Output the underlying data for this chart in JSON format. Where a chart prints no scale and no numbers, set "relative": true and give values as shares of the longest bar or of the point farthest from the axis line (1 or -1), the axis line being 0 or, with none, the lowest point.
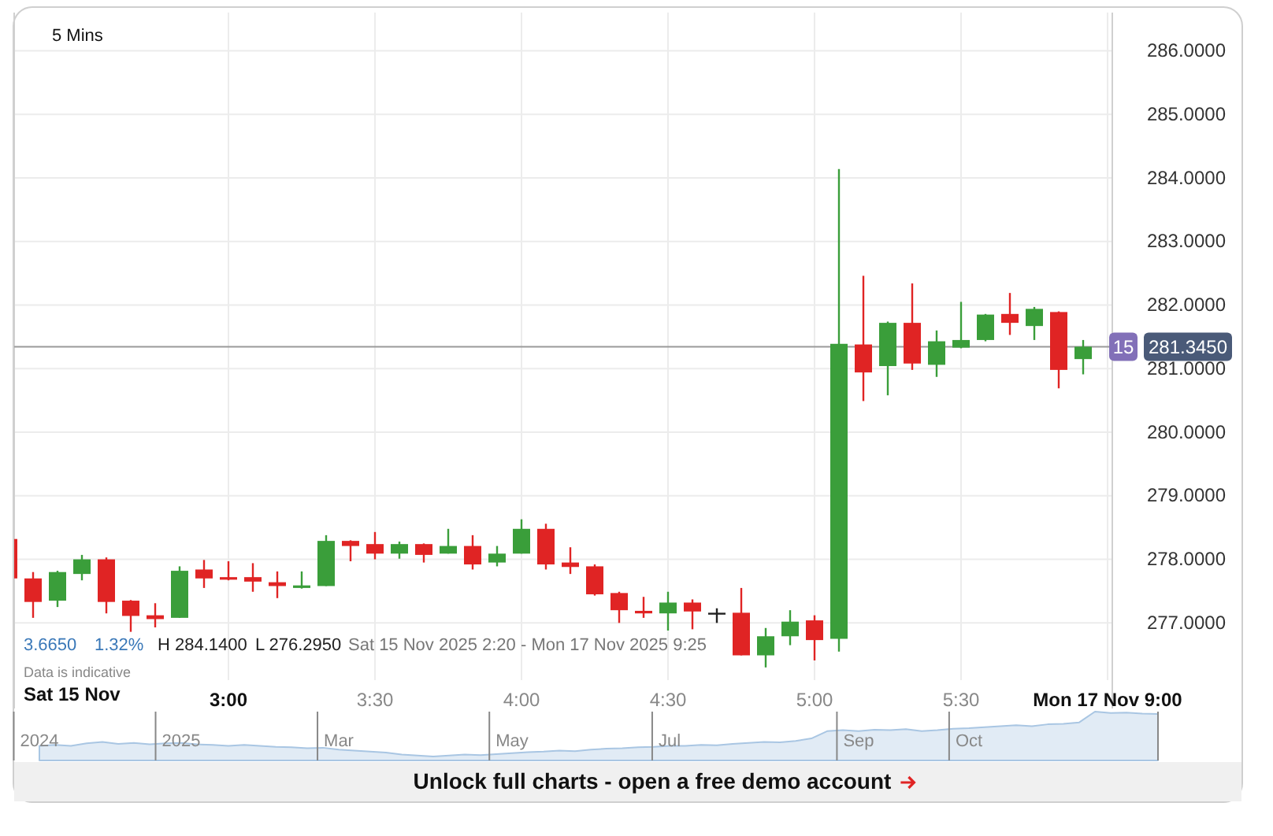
{
  "chart_data": [
    {
      "type": "candlestick",
      "categories": [
        null,
        null,
        null,
        null,
        null,
        null,
        null,
        null,
        null,
        "3:00",
        null,
        null,
        null,
        null,
        null,
        "3:30",
        null,
        null,
        null,
        null,
        null,
        "4:00",
        null,
        null,
        null,
        null,
        null,
        "4:30",
        null,
        null,
        null,
        null,
        null,
        "5:00",
        null,
        null,
        null,
        null,
        null,
        "5:30",
        null,
        null,
        null,
        null,
        null,
        "Mon 17 Nov 9:00"
      ],
      "ohlc": [
        [
          278.32,
          278.35,
          277.7,
          277.7
        ],
        [
          277.7,
          277.8,
          277.08,
          277.33
        ],
        [
          277.35,
          277.82,
          277.25,
          277.8
        ],
        [
          277.77,
          278.07,
          277.67,
          278.0
        ],
        [
          278.0,
          278.03,
          277.15,
          277.33
        ],
        [
          277.35,
          277.36,
          276.86,
          277.11
        ],
        [
          277.12,
          277.31,
          276.93,
          277.06
        ],
        [
          277.08,
          277.89,
          277.08,
          277.82
        ],
        [
          277.84,
          277.99,
          277.55,
          277.7
        ],
        [
          277.72,
          277.97,
          277.67,
          277.68
        ],
        [
          277.72,
          277.94,
          277.49,
          277.65
        ],
        [
          277.64,
          277.81,
          277.39,
          277.58
        ],
        [
          277.55,
          277.81,
          277.54,
          277.59
        ],
        [
          277.58,
          278.38,
          277.58,
          278.29
        ],
        [
          278.29,
          278.3,
          277.97,
          278.21
        ],
        [
          278.24,
          278.43,
          278.0,
          278.09
        ],
        [
          278.09,
          278.28,
          278.01,
          278.24
        ],
        [
          278.24,
          278.25,
          277.95,
          278.07
        ],
        [
          278.09,
          278.48,
          278.09,
          278.21
        ],
        [
          278.21,
          278.38,
          277.84,
          277.92
        ],
        [
          277.95,
          278.21,
          277.89,
          278.09
        ],
        [
          278.09,
          278.63,
          278.09,
          278.48
        ],
        [
          278.48,
          278.56,
          277.84,
          277.92
        ],
        [
          277.95,
          278.19,
          277.77,
          277.88
        ],
        [
          277.89,
          277.92,
          277.43,
          277.45
        ],
        [
          277.47,
          277.49,
          277.0,
          277.2
        ],
        [
          277.19,
          277.41,
          277.08,
          277.15
        ],
        [
          277.15,
          277.49,
          276.88,
          277.32
        ],
        [
          277.32,
          277.37,
          276.9,
          277.18
        ],
        [
          277.16,
          277.23,
          277.0,
          277.16
        ],
        [
          277.16,
          277.55,
          276.49,
          276.49
        ],
        [
          276.49,
          276.92,
          276.3,
          276.79
        ],
        [
          276.79,
          277.2,
          276.65,
          277.02
        ],
        [
          277.04,
          277.12,
          276.41,
          276.73
        ],
        [
          276.75,
          284.14,
          276.55,
          281.39
        ],
        [
          281.38,
          282.46,
          280.49,
          280.94
        ],
        [
          281.04,
          281.74,
          280.58,
          281.72
        ],
        [
          281.72,
          282.34,
          280.98,
          281.08
        ],
        [
          281.06,
          281.6,
          280.87,
          281.43
        ],
        [
          281.33,
          282.05,
          281.32,
          281.45
        ],
        [
          281.45,
          281.86,
          281.43,
          281.85
        ],
        [
          281.86,
          282.19,
          281.53,
          281.72
        ],
        [
          281.67,
          281.97,
          281.45,
          281.94
        ],
        [
          281.89,
          281.9,
          280.69,
          280.98
        ],
        [
          281.15,
          281.45,
          280.91,
          281.345
        ],
        null
      ],
      "colors": [
        "#e02424",
        "#e02424",
        "#3a9e3a",
        "#3a9e3a",
        "#e02424",
        "#e02424",
        "#e02424",
        "#3a9e3a",
        "#e02424",
        "#e02424",
        "#e02424",
        "#e02424",
        "#3a9e3a",
        "#3a9e3a",
        "#e02424",
        "#e02424",
        "#3a9e3a",
        "#e02424",
        "#3a9e3a",
        "#e02424",
        "#3a9e3a",
        "#3a9e3a",
        "#e02424",
        "#e02424",
        "#e02424",
        "#e02424",
        "#e02424",
        "#3a9e3a",
        "#e02424",
        "#222222",
        "#e02424",
        "#3a9e3a",
        "#3a9e3a",
        "#e02424",
        "#3a9e3a",
        "#e02424",
        "#3a9e3a",
        "#e02424",
        "#3a9e3a",
        "#3a9e3a",
        "#3a9e3a",
        "#e02424",
        "#3a9e3a",
        "#e02424",
        "#3a9e3a",
        null
      ],
      "ylim": [
        276.1,
        286.6
      ],
      "yticks": [
        {
          "value": 277,
          "label": "277.0000"
        },
        {
          "value": 278,
          "label": "278.0000"
        },
        {
          "value": 279,
          "label": "279.0000"
        },
        {
          "value": 280,
          "label": "280.0000"
        },
        {
          "value": 281,
          "label": "281.0000"
        },
        {
          "value": 282,
          "label": "282.0000"
        },
        {
          "value": 283,
          "label": "283.0000"
        },
        {
          "value": 284,
          "label": "284.0000"
        },
        {
          "value": 285,
          "label": "285.0000"
        },
        {
          "value": 286,
          "label": "286.0000"
        }
      ],
      "grid": true,
      "ref_lines": [
        {
          "axis": "y",
          "value": 281.345,
          "label": "281.3450",
          "color": "#9a9a9a"
        }
      ],
      "annotations": [
        "Sat 15 Nov",
        "5 Mins",
        "3.6650",
        "1.32%",
        "H 284.1400",
        "L 276.2950",
        "Sat 15 Nov 2025 2:20 - Mon 17 Nov 2025 9:25",
        "Data is indicative",
        {
          "text": "15",
          "y": 281.345
        },
        "Unlock full charts - open a free demo account"
      ]
    },
    {
      "type": "area",
      "relative": true,
      "color": "#a9c6e3",
      "categories": [
        "2024",
        null,
        null,
        null,
        null,
        null,
        null,
        null,
        null,
        "2025",
        null,
        null,
        null,
        null,
        null,
        null,
        null,
        null,
        null,
        "Mar",
        null,
        null,
        null,
        null,
        null,
        null,
        null,
        null,
        null,
        null,
        "May",
        null,
        null,
        null,
        null,
        null,
        null,
        null,
        null,
        null,
        "Jul",
        null,
        null,
        null,
        null,
        null,
        null,
        null,
        null,
        null,
        null,
        null,
        "Sep",
        null,
        null,
        null,
        null,
        null,
        null,
        "Oct",
        null,
        null,
        null,
        null,
        null,
        null,
        null,
        null,
        null,
        null,
        null,
        null
      ],
      "values": [
        0.3,
        0.32,
        0.3,
        0.35,
        0.38,
        0.34,
        0.36,
        0.33,
        0.35,
        0.36,
        0.33,
        0.32,
        0.3,
        0.32,
        0.3,
        0.28,
        0.27,
        0.25,
        0.26,
        0.22,
        0.2,
        0.18,
        0.16,
        0.12,
        0.1,
        0.08,
        0.1,
        0.12,
        0.11,
        0.13,
        0.15,
        0.17,
        0.18,
        0.2,
        0.19,
        0.22,
        0.24,
        0.25,
        0.27,
        0.28,
        0.3,
        0.3,
        0.32,
        0.31,
        0.34,
        0.36,
        0.38,
        0.37,
        0.4,
        0.45,
        0.6,
        0.62,
        0.6,
        0.63,
        0.62,
        0.64,
        0.6,
        0.62,
        0.65,
        0.66,
        0.68,
        0.7,
        0.72,
        0.7,
        0.74,
        0.75,
        0.78,
        1.0,
        0.97,
        0.98,
        0.96,
        0.95
      ]
    }
  ]
}
